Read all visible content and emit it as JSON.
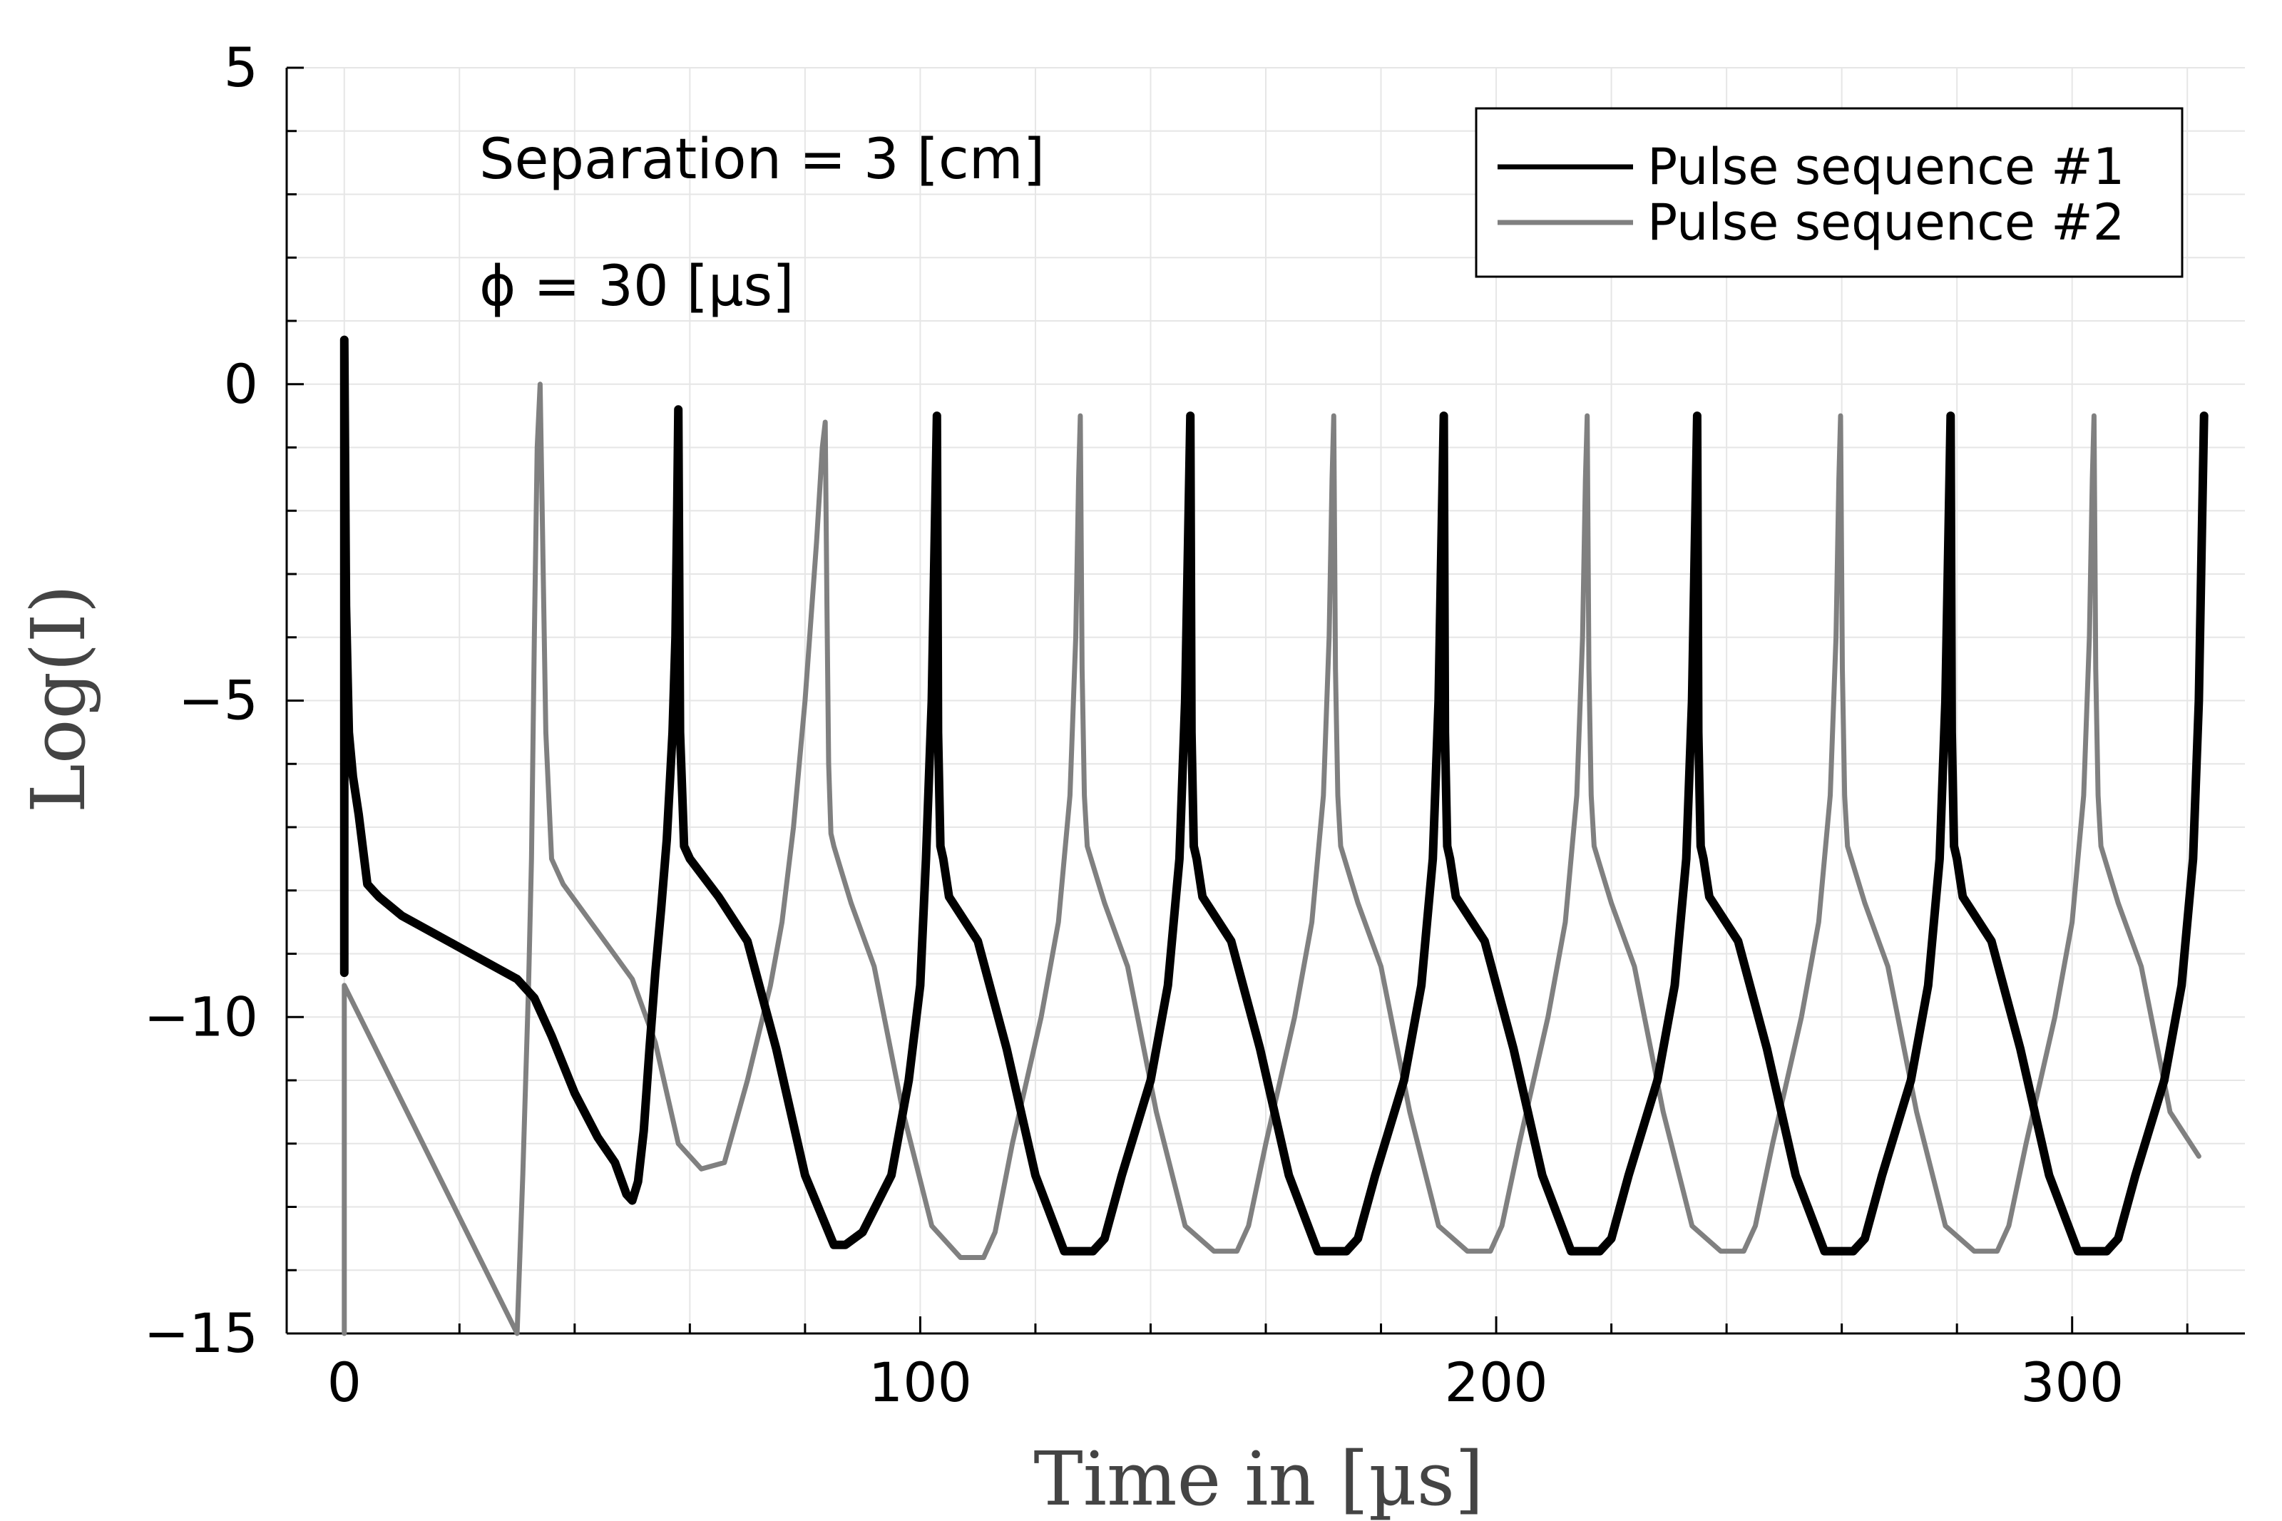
{
  "chart_data": {
    "type": "line",
    "xlabel": "Time in [µs]",
    "ylabel": "Log(I)",
    "xlim": [
      -10,
      330
    ],
    "ylim": [
      -15,
      5
    ],
    "xticks": [
      0,
      100,
      200,
      300
    ],
    "xtick_labels": [
      "0",
      "100",
      "200",
      "300"
    ],
    "yticks": [
      5,
      0,
      -5,
      -10,
      -15
    ],
    "ytick_labels": [
      "5",
      "0",
      "−5",
      "−10",
      "−15"
    ],
    "grid": true,
    "legend_position": "top-right",
    "annotations": [
      "Separation = 3 [cm]",
      "ϕ = 30 [µs]"
    ],
    "series": [
      {
        "name": "Pulse sequence #1",
        "color": "#000000",
        "x": [
          0,
          0,
          0.3,
          0.8,
          1.5,
          2.5,
          4,
          5,
          6,
          10,
          20,
          30,
          33,
          36,
          40,
          44,
          47,
          49,
          50,
          51,
          52,
          53,
          54,
          55,
          56,
          57,
          57.5,
          57.8,
          58,
          58.3,
          59,
          60,
          65,
          70,
          75,
          80,
          85,
          87,
          90,
          95,
          98,
          100,
          101,
          102,
          102.5,
          102.9,
          103.1,
          103.5,
          104,
          105,
          110,
          115,
          120,
          125,
          130,
          132,
          135,
          140,
          143,
          145,
          146,
          146.5,
          146.9,
          147.1,
          147.5,
          148,
          149,
          154,
          159,
          164,
          169,
          174,
          176,
          179,
          184,
          187,
          189,
          190,
          190.5,
          190.9,
          191.1,
          191.5,
          192,
          193,
          198,
          203,
          208,
          213,
          218,
          220,
          223,
          228,
          231,
          233,
          234,
          234.5,
          234.9,
          235.1,
          235.5,
          236,
          237,
          242,
          247,
          252,
          257,
          262,
          264,
          267,
          272,
          275,
          277,
          278,
          278.5,
          278.9,
          279.1,
          279.5,
          280,
          281,
          286,
          291,
          296,
          301,
          306,
          308,
          311,
          316,
          319,
          321,
          322,
          322.5,
          322.9
        ],
        "y": [
          -9.3,
          0.7,
          -3.5,
          -5.5,
          -6.2,
          -6.8,
          -7.9,
          -8.0,
          -8.1,
          -8.4,
          -8.9,
          -9.4,
          -9.7,
          -10.3,
          -11.2,
          -11.9,
          -12.3,
          -12.8,
          -12.9,
          -12.6,
          -11.8,
          -10.5,
          -9.3,
          -8.3,
          -7.2,
          -5.5,
          -4.0,
          -2.0,
          -0.4,
          -5.5,
          -7.3,
          -7.5,
          -8.1,
          -8.8,
          -10.5,
          -12.5,
          -13.6,
          -13.6,
          -13.4,
          -12.5,
          -11,
          -9.5,
          -7.5,
          -5.0,
          -2.5,
          -0.5,
          -5.5,
          -7.3,
          -7.5,
          -8.1,
          -8.8,
          -10.5,
          -12.5,
          -13.7,
          -13.7,
          -13.5,
          -12.5,
          -11,
          -9.5,
          -7.5,
          -5.0,
          -2.5,
          -0.5,
          -5.5,
          -7.3,
          -7.5,
          -8.1,
          -8.8,
          -10.5,
          -12.5,
          -13.7,
          -13.7,
          -13.5,
          -12.5,
          -11,
          -9.5,
          -7.5,
          -5.0,
          -2.5,
          -0.5,
          -5.5,
          -7.3,
          -7.5,
          -8.1,
          -8.8,
          -10.5,
          -12.5,
          -13.7,
          -13.7,
          -13.5,
          -12.5,
          -11,
          -9.5,
          -7.5,
          -5.0,
          -2.5,
          -0.5,
          -5.5,
          -7.3,
          -7.5,
          -8.1,
          -8.8,
          -10.5,
          -12.5,
          -13.7,
          -13.7,
          -13.5,
          -12.5,
          -11,
          -9.5,
          -7.5,
          -5.0,
          -2.5,
          -0.5,
          -5.5,
          -7.3,
          -7.5,
          -8.1,
          -8.8,
          -10.5,
          -12.5,
          -13.7,
          -13.7,
          -13.5,
          -12.5,
          -11,
          -9.5,
          -7.5,
          -5.0,
          -2.5,
          -0.5
        ]
      },
      {
        "name": "Pulse sequence #2",
        "color": "#808080",
        "x": [
          0,
          0,
          30,
          31,
          32,
          32.5,
          33,
          33.5,
          34,
          35,
          36,
          38,
          42,
          46,
          50,
          54,
          58,
          62,
          66,
          70,
          74,
          76,
          78,
          80,
          82,
          83,
          83.5,
          83.8,
          84.1,
          84.5,
          85,
          86,
          88,
          92,
          97,
          102,
          107,
          111,
          113,
          116,
          121,
          124,
          126,
          127,
          127.5,
          127.8,
          128.1,
          128.5,
          129,
          130,
          132,
          136,
          141,
          146,
          151,
          155,
          157,
          160,
          165,
          168,
          170,
          171,
          171.5,
          171.8,
          172.1,
          172.5,
          173,
          174,
          176,
          180,
          185,
          190,
          195,
          199,
          201,
          204,
          209,
          212,
          214,
          215,
          215.5,
          215.8,
          216.1,
          216.5,
          217,
          218,
          220,
          224,
          229,
          234,
          239,
          243,
          245,
          248,
          253,
          256,
          258,
          259,
          259.5,
          259.8,
          260.1,
          260.5,
          261,
          262,
          264,
          268,
          273,
          278,
          283,
          287,
          289,
          292,
          297,
          300,
          302,
          303,
          303.5,
          303.8,
          304.1,
          304.5,
          305,
          306,
          308,
          312,
          317,
          322
        ],
        "y": [
          -15,
          -9.5,
          -15,
          -12.5,
          -9.5,
          -7.5,
          -4,
          -1,
          0.0,
          -5.5,
          -7.5,
          -7.9,
          -8.4,
          -8.9,
          -9.4,
          -10.4,
          -12.0,
          -12.4,
          -12.3,
          -11.0,
          -9.5,
          -8.5,
          -7.0,
          -5.0,
          -2.5,
          -1.0,
          -0.6,
          -3.5,
          -6.0,
          -7.1,
          -7.3,
          -7.6,
          -8.2,
          -9.2,
          -11.5,
          -13.3,
          -13.8,
          -13.8,
          -13.4,
          -12.0,
          -10.0,
          -8.5,
          -6.5,
          -4.0,
          -1.5,
          -0.5,
          -4.5,
          -6.5,
          -7.3,
          -7.6,
          -8.2,
          -9.2,
          -11.5,
          -13.3,
          -13.7,
          -13.7,
          -13.3,
          -12.0,
          -10.0,
          -8.5,
          -6.5,
          -4.0,
          -1.5,
          -0.5,
          -4.5,
          -6.5,
          -7.3,
          -7.6,
          -8.2,
          -9.2,
          -11.5,
          -13.3,
          -13.7,
          -13.7,
          -13.3,
          -12.0,
          -10.0,
          -8.5,
          -6.5,
          -4.0,
          -1.5,
          -0.5,
          -4.5,
          -6.5,
          -7.3,
          -7.6,
          -8.2,
          -9.2,
          -11.5,
          -13.3,
          -13.7,
          -13.7,
          -13.3,
          -12.0,
          -10.0,
          -8.5,
          -6.5,
          -4.0,
          -1.5,
          -0.5,
          -4.5,
          -6.5,
          -7.3,
          -7.6,
          -8.2,
          -9.2,
          -11.5,
          -13.3,
          -13.7,
          -13.7,
          -13.3,
          -12.0,
          -10.0,
          -8.5,
          -6.5,
          -4.0,
          -1.5,
          -0.5,
          -4.5,
          -6.5,
          -7.3,
          -7.6,
          -8.2,
          -9.2,
          -11.5,
          -12.2
        ]
      }
    ]
  }
}
